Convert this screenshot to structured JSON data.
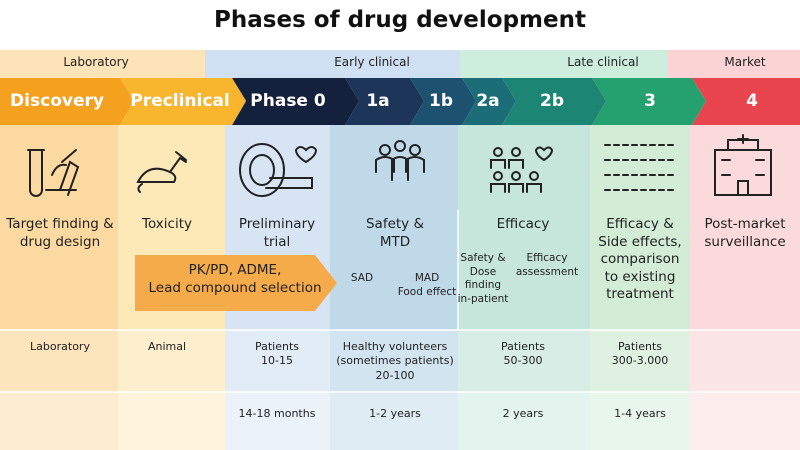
{
  "title": "Phases of drug development",
  "stages": [
    {
      "label": "Laboratory"
    },
    {
      "label": "Early clinical"
    },
    {
      "label": "Late clinical"
    },
    {
      "label": "Market"
    }
  ],
  "phases": [
    {
      "label": "Discovery"
    },
    {
      "label": "Preclinical"
    },
    {
      "label": "Phase 0"
    },
    {
      "label": "1a"
    },
    {
      "label": "1b"
    },
    {
      "label": "2a"
    },
    {
      "label": "2b"
    },
    {
      "label": "3"
    },
    {
      "label": "4"
    }
  ],
  "columns": [
    {
      "description": "Target finding & drug design",
      "setting": "Laboratory"
    },
    {
      "description": "Toxicity",
      "setting": "Animal"
    },
    {
      "description": "Preliminary trial",
      "setting": "Patients\n10-15",
      "duration": "14-18 months"
    },
    {
      "description": "Safety &\nMTD",
      "sub": [
        "SAD",
        "MAD\nFood effect"
      ],
      "setting": "Healthy volunteers\n(sometimes patients)\n20-100",
      "duration": "1-2 years"
    },
    {
      "description": "Efficacy",
      "sub": [
        "Safety &\nDose\nfinding\nin-patient",
        "Efficacy\nassessment"
      ],
      "setting": "Patients\n50-300",
      "duration": "2 years"
    },
    {
      "description": "Efficacy &\nSide effects,\ncomparison\nto existing\ntreatment",
      "setting": "Patients\n300-3.000",
      "duration": "1-4 years"
    },
    {
      "description": "Post-market\nsurveillance"
    }
  ],
  "preclinical_arrow": "PK/PD, ADME,\nLead compound selection"
}
